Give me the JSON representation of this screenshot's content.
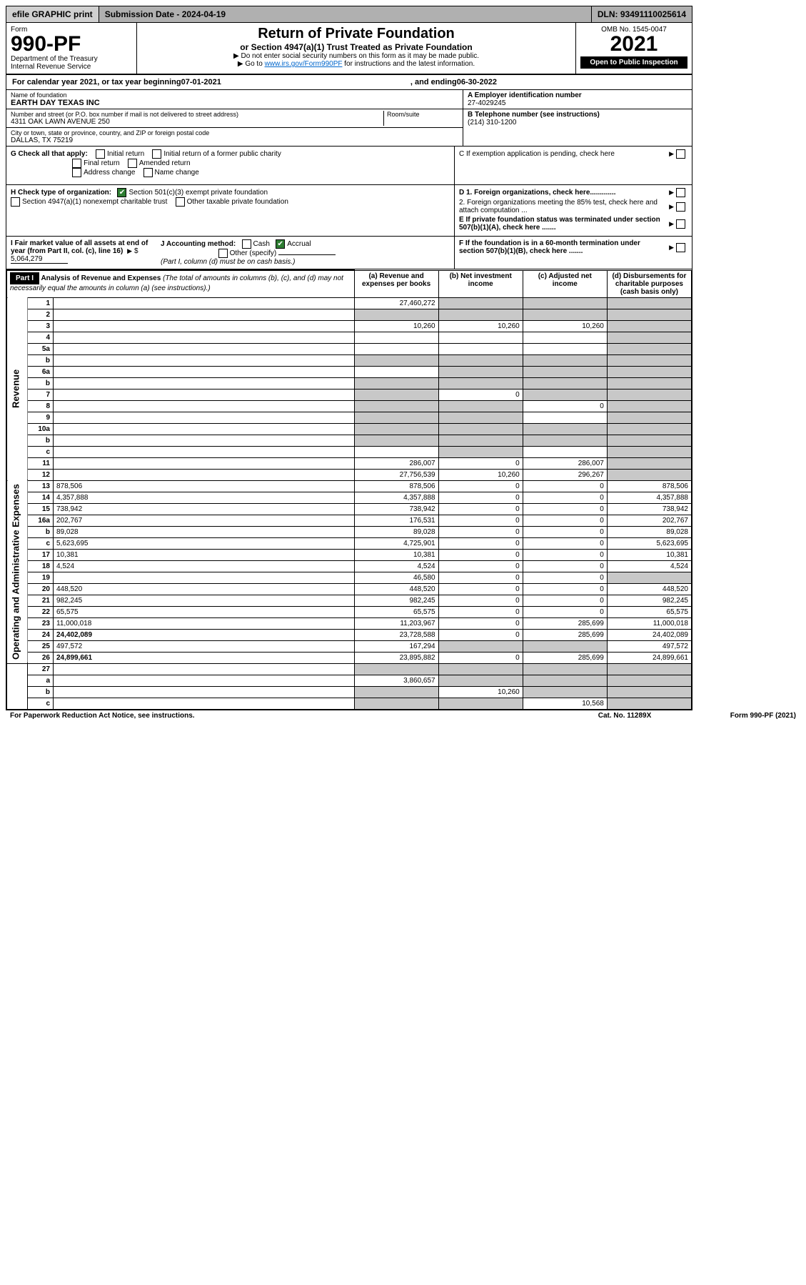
{
  "topbar": {
    "efile": "efile GRAPHIC print",
    "subdate": "Submission Date - 2024-04-19",
    "dln": "DLN: 93491110025614"
  },
  "header": {
    "form_label": "Form",
    "form_no": "990-PF",
    "dept": "Department of the Treasury",
    "irs": "Internal Revenue Service",
    "title": "Return of Private Foundation",
    "sub": "or Section 4947(a)(1) Trust Treated as Private Foundation",
    "note1": "▶ Do not enter social security numbers on this form as it may be made public.",
    "note2_pre": "▶ Go to ",
    "note2_link": "www.irs.gov/Form990PF",
    "note2_post": " for instructions and the latest information.",
    "omb": "OMB No. 1545-0047",
    "year": "2021",
    "open": "Open to Public Inspection"
  },
  "calyear": {
    "pre": "For calendar year 2021, or tax year beginning ",
    "begin": "07-01-2021",
    "mid": " , and ending ",
    "end": "06-30-2022"
  },
  "info": {
    "name_label": "Name of foundation",
    "name": "EARTH DAY TEXAS INC",
    "addr_label": "Number and street (or P.O. box number if mail is not delivered to street address)",
    "addr": "4311 OAK LAWN AVENUE 250",
    "room_label": "Room/suite",
    "city_label": "City or town, state or province, country, and ZIP or foreign postal code",
    "city": "DALLAS, TX  75219",
    "ein_label": "A Employer identification number",
    "ein": "27-4029245",
    "tel_label": "B Telephone number (see instructions)",
    "tel": "(214) 310-1200",
    "c": "C If exemption application is pending, check here",
    "d1": "D 1. Foreign organizations, check here.............",
    "d2": "2. Foreign organizations meeting the 85% test, check here and attach computation ...",
    "e": "E If private foundation status was terminated under section 507(b)(1)(A), check here .......",
    "f": "F If the foundation is in a 60-month termination under section 507(b)(1)(B), check here .......",
    "g": "G Check all that apply:",
    "g_opts": {
      "initial": "Initial return",
      "initial_former": "Initial return of a former public charity",
      "final": "Final return",
      "amended": "Amended return",
      "addr_change": "Address change",
      "name_change": "Name change"
    },
    "h": "H Check type of organization:",
    "h_opts": {
      "sec501": "Section 501(c)(3) exempt private foundation",
      "sec4947": "Section 4947(a)(1) nonexempt charitable trust",
      "other_tax": "Other taxable private foundation"
    },
    "i": "I Fair market value of all assets at end of year (from Part II, col. (c), line 16)",
    "i_val": "5,064,279",
    "j": "J Accounting method:",
    "j_opts": {
      "cash": "Cash",
      "accrual": "Accrual",
      "other": "Other (specify)"
    },
    "j_note": "(Part I, column (d) must be on cash basis.)"
  },
  "part1": {
    "label": "Part I",
    "title": "Analysis of Revenue and Expenses",
    "note": " (The total of amounts in columns (b), (c), and (d) may not necessarily equal the amounts in column (a) (see instructions).)",
    "cols": {
      "a": "(a) Revenue and expenses per books",
      "b": "(b) Net investment income",
      "c": "(c) Adjusted net income",
      "d": "(d) Disbursements for charitable purposes (cash basis only)"
    }
  },
  "side_labels": {
    "rev": "Revenue",
    "exp": "Operating and Administrative Expenses"
  },
  "rows": [
    {
      "n": "1",
      "d": "",
      "a": "27,460,272",
      "b": "",
      "c": "",
      "sh": [
        "b",
        "c",
        "d"
      ]
    },
    {
      "n": "2",
      "d": "",
      "a": "",
      "b": "",
      "c": "",
      "sh": [
        "a",
        "b",
        "c",
        "d"
      ]
    },
    {
      "n": "3",
      "d": "",
      "a": "10,260",
      "b": "10,260",
      "c": "10,260",
      "sh": [
        "d"
      ]
    },
    {
      "n": "4",
      "d": "",
      "a": "",
      "b": "",
      "c": "",
      "sh": [
        "d"
      ]
    },
    {
      "n": "5a",
      "d": "",
      "a": "",
      "b": "",
      "c": "",
      "sh": [
        "d"
      ]
    },
    {
      "n": "b",
      "d": "",
      "a": "",
      "b": "",
      "c": "",
      "sh": [
        "a",
        "b",
        "c",
        "d"
      ]
    },
    {
      "n": "6a",
      "d": "",
      "a": "",
      "b": "",
      "c": "",
      "sh": [
        "b",
        "c",
        "d"
      ]
    },
    {
      "n": "b",
      "d": "",
      "a": "",
      "b": "",
      "c": "",
      "sh": [
        "a",
        "b",
        "c",
        "d"
      ]
    },
    {
      "n": "7",
      "d": "",
      "a": "",
      "b": "0",
      "c": "",
      "sh": [
        "a",
        "c",
        "d"
      ]
    },
    {
      "n": "8",
      "d": "",
      "a": "",
      "b": "",
      "c": "0",
      "sh": [
        "a",
        "b",
        "d"
      ]
    },
    {
      "n": "9",
      "d": "",
      "a": "",
      "b": "",
      "c": "",
      "sh": [
        "a",
        "b",
        "d"
      ]
    },
    {
      "n": "10a",
      "d": "",
      "a": "",
      "b": "",
      "c": "",
      "sh": [
        "a",
        "b",
        "c",
        "d"
      ]
    },
    {
      "n": "b",
      "d": "",
      "a": "",
      "b": "",
      "c": "",
      "sh": [
        "a",
        "b",
        "c",
        "d"
      ]
    },
    {
      "n": "c",
      "d": "",
      "a": "",
      "b": "",
      "c": "",
      "sh": [
        "b",
        "d"
      ]
    },
    {
      "n": "11",
      "d": "",
      "a": "286,007",
      "b": "0",
      "c": "286,007",
      "sh": [
        "d"
      ]
    },
    {
      "n": "12",
      "d": "",
      "a": "27,756,539",
      "b": "10,260",
      "c": "296,267",
      "sh": [
        "d"
      ],
      "bold": true
    }
  ],
  "exp_rows": [
    {
      "n": "13",
      "d": "878,506",
      "a": "878,506",
      "b": "0",
      "c": "0"
    },
    {
      "n": "14",
      "d": "4,357,888",
      "a": "4,357,888",
      "b": "0",
      "c": "0"
    },
    {
      "n": "15",
      "d": "738,942",
      "a": "738,942",
      "b": "0",
      "c": "0"
    },
    {
      "n": "16a",
      "d": "202,767",
      "a": "176,531",
      "b": "0",
      "c": "0"
    },
    {
      "n": "b",
      "d": "89,028",
      "a": "89,028",
      "b": "0",
      "c": "0"
    },
    {
      "n": "c",
      "d": "5,623,695",
      "a": "4,725,901",
      "b": "0",
      "c": "0"
    },
    {
      "n": "17",
      "d": "10,381",
      "a": "10,381",
      "b": "0",
      "c": "0"
    },
    {
      "n": "18",
      "d": "4,524",
      "a": "4,524",
      "b": "0",
      "c": "0"
    },
    {
      "n": "19",
      "d": "",
      "a": "46,580",
      "b": "0",
      "c": "0",
      "sh": [
        "d"
      ]
    },
    {
      "n": "20",
      "d": "448,520",
      "a": "448,520",
      "b": "0",
      "c": "0"
    },
    {
      "n": "21",
      "d": "982,245",
      "a": "982,245",
      "b": "0",
      "c": "0"
    },
    {
      "n": "22",
      "d": "65,575",
      "a": "65,575",
      "b": "0",
      "c": "0"
    },
    {
      "n": "23",
      "d": "11,000,018",
      "a": "11,203,967",
      "b": "0",
      "c": "285,699"
    },
    {
      "n": "24",
      "d": "24,402,089",
      "a": "23,728,588",
      "b": "0",
      "c": "285,699",
      "bold": true
    },
    {
      "n": "25",
      "d": "497,572",
      "a": "167,294",
      "b": "",
      "c": "",
      "sh": [
        "b",
        "c"
      ]
    },
    {
      "n": "26",
      "d": "24,899,661",
      "a": "23,895,882",
      "b": "0",
      "c": "285,699",
      "bold": true
    }
  ],
  "final_rows": [
    {
      "n": "27",
      "d": "",
      "a": "",
      "b": "",
      "c": "",
      "sh": [
        "a",
        "b",
        "c",
        "d"
      ]
    },
    {
      "n": "a",
      "d": "",
      "a": "3,860,657",
      "b": "",
      "c": "",
      "sh": [
        "b",
        "c",
        "d"
      ],
      "bold": true
    },
    {
      "n": "b",
      "d": "",
      "a": "",
      "b": "10,260",
      "c": "",
      "sh": [
        "a",
        "c",
        "d"
      ],
      "bold": true
    },
    {
      "n": "c",
      "d": "",
      "a": "",
      "b": "",
      "c": "10,568",
      "sh": [
        "a",
        "b",
        "d"
      ],
      "bold": true
    }
  ],
  "footer": {
    "left": "For Paperwork Reduction Act Notice, see instructions.",
    "mid": "Cat. No. 11289X",
    "right": "Form 990-PF (2021)"
  }
}
